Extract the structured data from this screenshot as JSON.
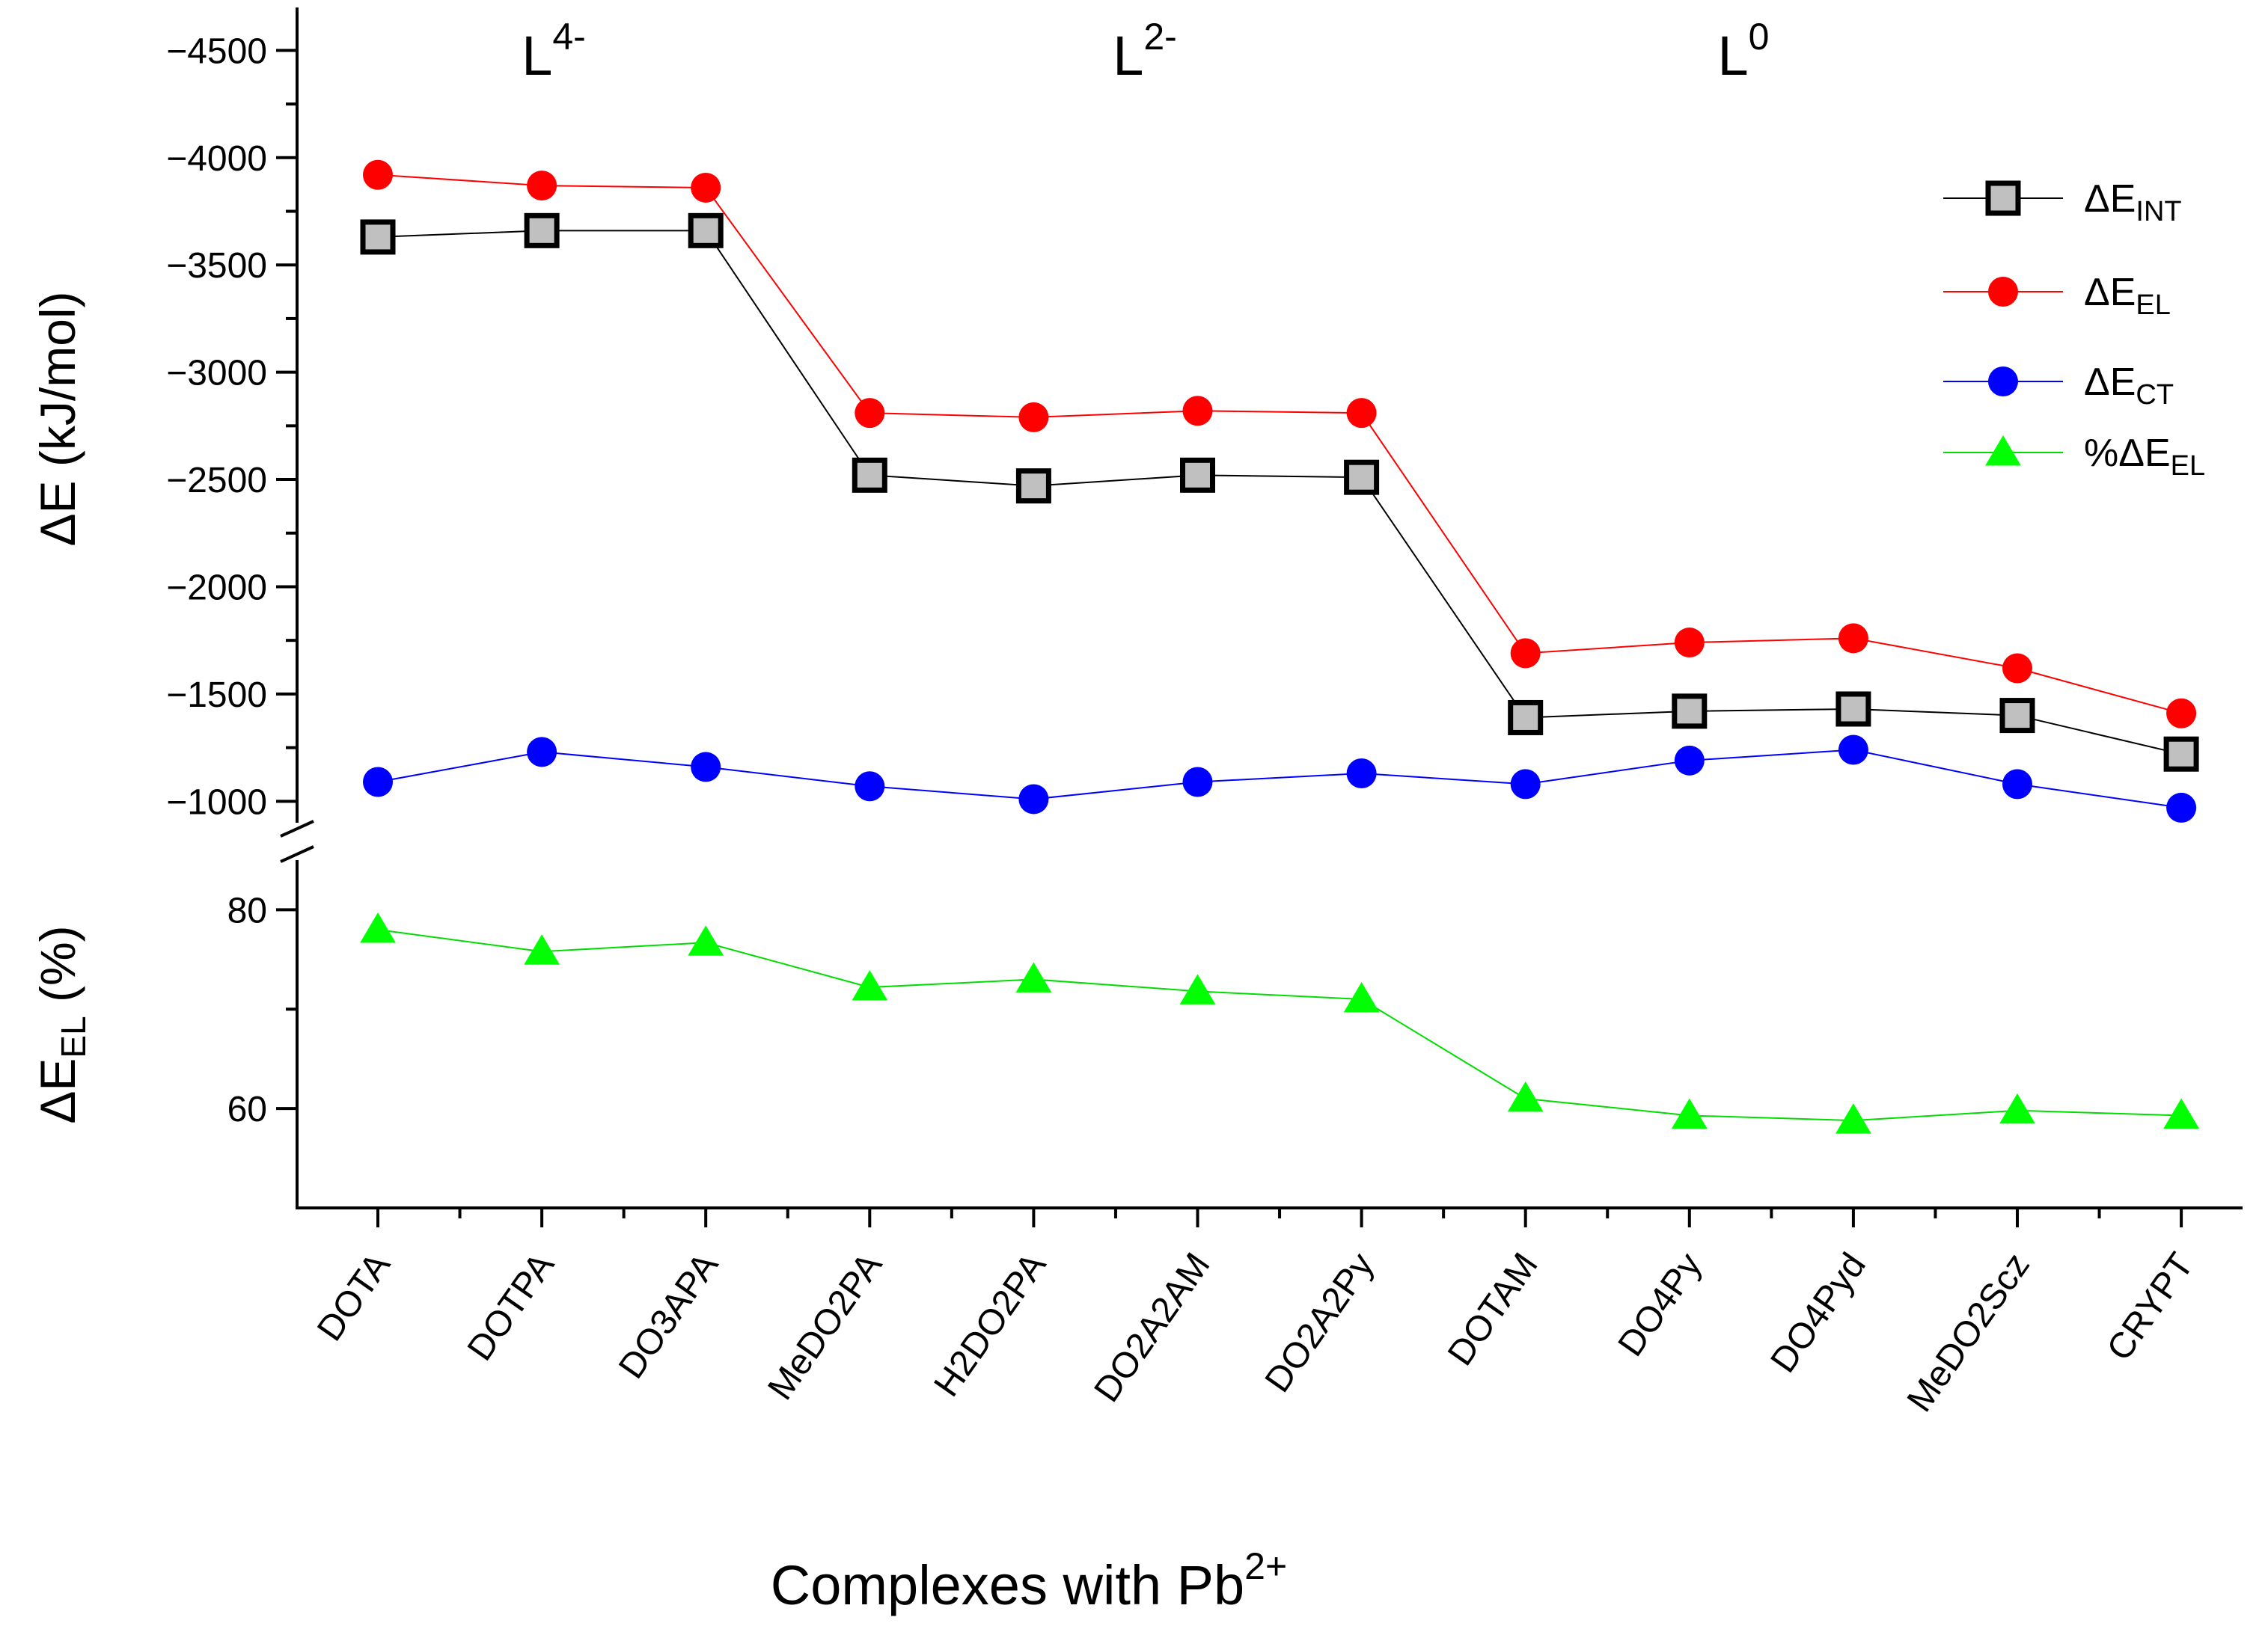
{
  "chart_data": {
    "type": "line",
    "x_title": "Complexes with Pb",
    "x_title_sup": "2+",
    "categories": [
      "DOTA",
      "DOTPA",
      "DO3APA",
      "MeDO2PA",
      "H2DO2PA",
      "DO2A2AM",
      "DO2A2Py",
      "DOTAM",
      "DO4Py",
      "DO4Pyd",
      "MeDO2Scz",
      "CRYPT"
    ],
    "top_panel": {
      "ylabel": "ΔE (kJ/mol)",
      "ylim": [
        -900,
        -4700
      ],
      "ticks": [
        -4500,
        -4000,
        -3500,
        -3000,
        -2500,
        -2000,
        -1500,
        -1000
      ],
      "tick_labels": [
        "−4500",
        "−4000",
        "−3500",
        "−3000",
        "−2500",
        "−2000",
        "−1500",
        "−1000"
      ],
      "series": [
        {
          "name": "ΔE",
          "sub": "INT",
          "color": "#000000",
          "fill": "#c0c0c0",
          "marker": "square",
          "values": [
            -3630,
            -3660,
            -3660,
            -2520,
            -2470,
            -2520,
            -2510,
            -1390,
            -1420,
            -1430,
            -1400,
            -1220
          ]
        },
        {
          "name": "ΔE",
          "sub": "EL",
          "color": "#ff0000",
          "fill": "#ff0000",
          "marker": "circle",
          "values": [
            -3920,
            -3870,
            -3860,
            -2810,
            -2790,
            -2820,
            -2810,
            -1690,
            -1740,
            -1760,
            -1620,
            -1410
          ]
        },
        {
          "name": "ΔE",
          "sub": "CT",
          "color": "#0000ff",
          "fill": "#0000ff",
          "marker": "circle",
          "values": [
            -1090,
            -1230,
            -1160,
            -1070,
            -1010,
            -1090,
            -1130,
            -1080,
            -1190,
            -1240,
            -1080,
            -970
          ]
        }
      ]
    },
    "bottom_panel": {
      "ylabel": "ΔE",
      "ylabel_sub": "EL",
      "ylabel_suffix": " (%)",
      "ylim": [
        50,
        85
      ],
      "ticks": [
        60,
        80
      ],
      "tick_labels": [
        "60",
        "80"
      ],
      "series": [
        {
          "name": "%ΔE",
          "sub": "EL",
          "color": "#00dd00",
          "fill": "#00ff00",
          "marker": "triangle",
          "values": [
            78.0,
            75.8,
            76.7,
            72.2,
            73.0,
            71.8,
            71.0,
            61.0,
            59.3,
            58.8,
            59.8,
            59.3
          ]
        }
      ]
    },
    "group_labels": [
      {
        "text": "L",
        "sup": "4-"
      },
      {
        "text": "L",
        "sup": "2-"
      },
      {
        "text": "L",
        "sup": "0"
      }
    ],
    "legend_position": "top-right"
  }
}
